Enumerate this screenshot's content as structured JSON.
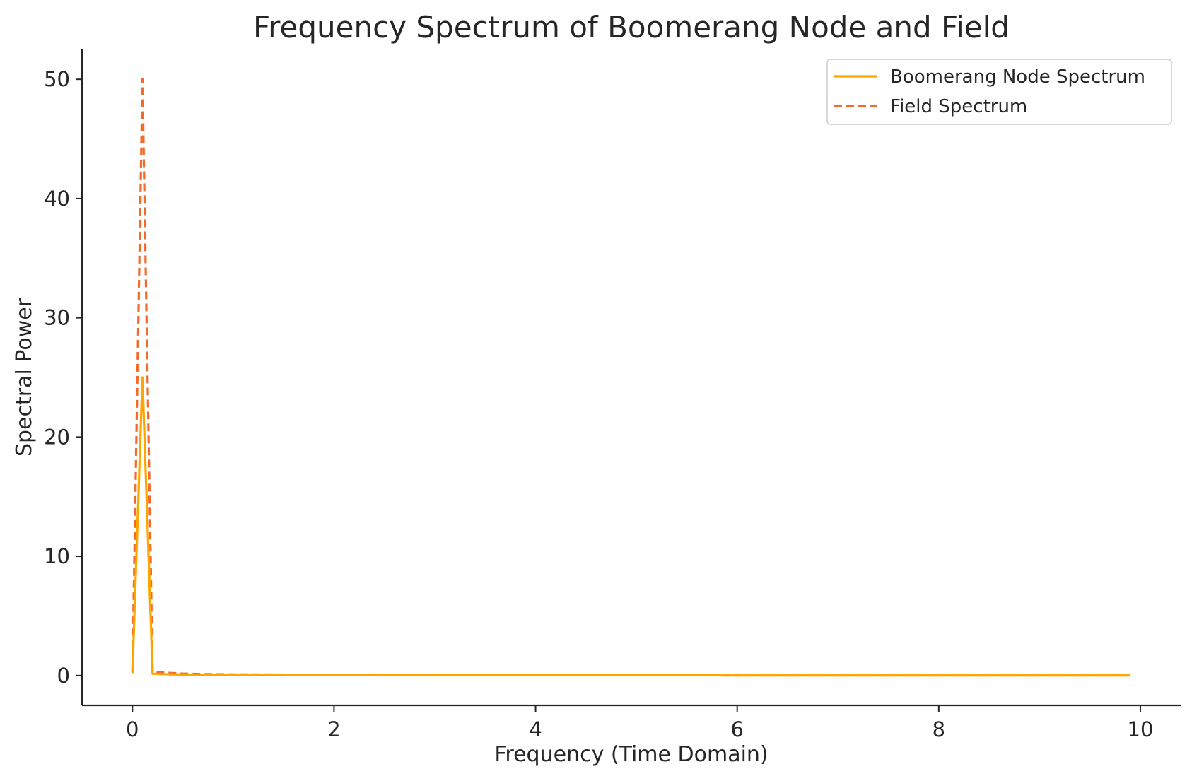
{
  "chart_data": {
    "type": "line",
    "title": "Frequency Spectrum of Boomerang Node and Field",
    "xlabel": "Frequency (Time Domain)",
    "ylabel": "Spectral Power",
    "xlim": [
      -0.5,
      10.4
    ],
    "ylim": [
      -2.5,
      52.5
    ],
    "xticks": [
      0,
      2,
      4,
      6,
      8,
      10
    ],
    "yticks": [
      0,
      10,
      20,
      30,
      40,
      50
    ],
    "xtick_labels": [
      "0",
      "2",
      "4",
      "6",
      "8",
      "10"
    ],
    "ytick_labels": [
      "0",
      "10",
      "20",
      "30",
      "40",
      "50"
    ],
    "grid": false,
    "legend_position": "top-right",
    "series": [
      {
        "name": "Boomerang Node Spectrum",
        "color": "#FFA500",
        "style": "solid",
        "x": [
          0.0,
          0.1,
          0.2,
          0.3,
          0.4,
          0.5,
          0.7,
          1.0,
          2.0,
          3.0,
          4.0,
          5.0,
          6.0,
          7.0,
          8.0,
          9.0,
          9.9
        ],
        "y": [
          0.2,
          25.0,
          0.15,
          0.12,
          0.1,
          0.08,
          0.06,
          0.05,
          0.03,
          0.02,
          0.02,
          0.02,
          0.01,
          0.01,
          0.01,
          0.01,
          0.01
        ]
      },
      {
        "name": "Field Spectrum",
        "color": "#F26B2A",
        "style": "dashed",
        "x": [
          0.0,
          0.1,
          0.2,
          0.3,
          0.4,
          0.5,
          0.7,
          1.0,
          2.0,
          3.0,
          4.0,
          5.0,
          6.0,
          7.0,
          8.0,
          9.0,
          9.9
        ],
        "y": [
          0.3,
          50.0,
          0.3,
          0.25,
          0.2,
          0.16,
          0.12,
          0.09,
          0.06,
          0.04,
          0.03,
          0.03,
          0.02,
          0.02,
          0.02,
          0.02,
          0.02
        ]
      }
    ]
  }
}
